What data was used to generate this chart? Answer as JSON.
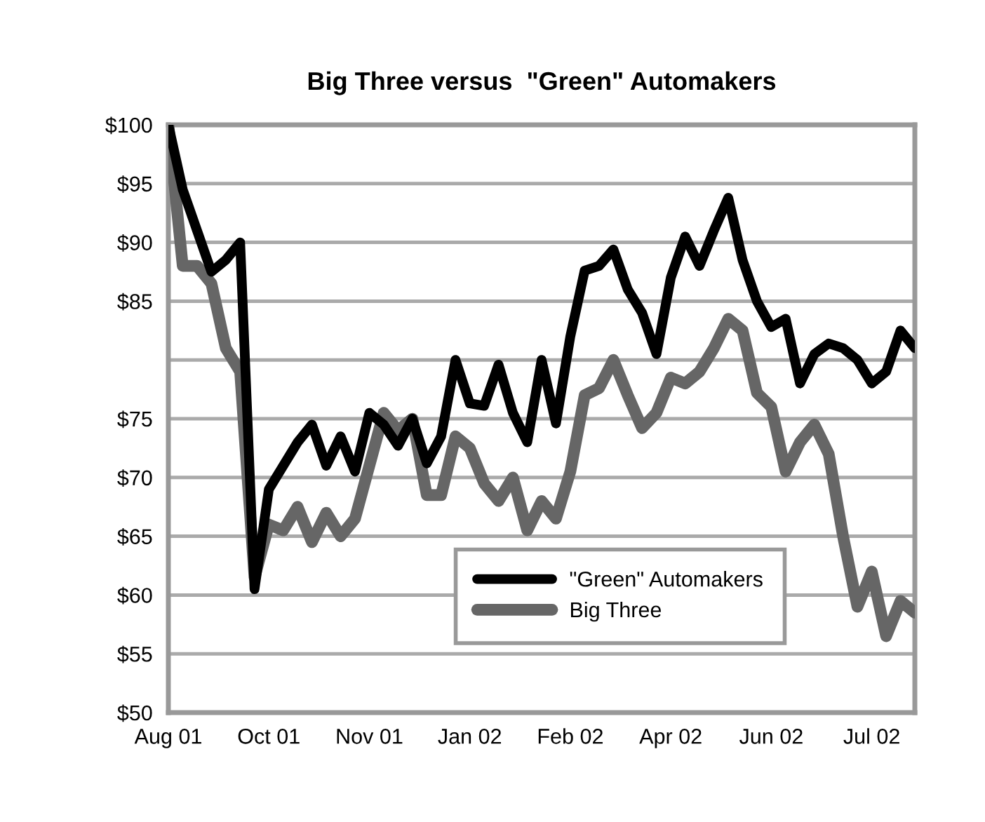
{
  "chart_data": {
    "type": "line",
    "title": "Big Three versus  \"Green\" Automakers",
    "categories": [
      "Aug 01",
      null,
      null,
      null,
      null,
      null,
      null,
      "Oct 01",
      null,
      null,
      null,
      null,
      null,
      null,
      "Nov 01",
      null,
      null,
      null,
      null,
      null,
      null,
      "Jan 02",
      null,
      null,
      null,
      null,
      null,
      null,
      "Feb 02",
      null,
      null,
      null,
      null,
      null,
      null,
      "Apr 02",
      null,
      null,
      null,
      null,
      null,
      null,
      "Jun 02",
      null,
      null,
      null,
      null,
      null,
      null,
      "Jul 02",
      null,
      null,
      null
    ],
    "series": [
      {
        "name": "\"Green\" Automakers",
        "color": "#000000",
        "values": [
          100,
          94.5,
          91,
          87.5,
          88.5,
          90,
          60.5,
          69,
          71,
          73,
          74.5,
          71,
          73.5,
          70.5,
          75.5,
          74.5,
          72.7,
          75,
          71.2,
          73.5,
          80,
          76.3,
          76.1,
          79.6,
          75.5,
          73,
          80,
          74.6,
          82,
          87.6,
          88,
          89.4,
          86,
          84,
          80.5,
          87,
          90.5,
          88,
          91,
          93.8,
          88.5,
          85,
          82.8,
          83.5,
          78,
          80.5,
          81.4,
          81,
          80,
          78,
          79,
          82.5,
          81
        ]
      },
      {
        "name": "Big Three",
        "color": "#666666",
        "values": [
          100,
          88,
          88,
          86.5,
          81,
          79,
          61.5,
          66,
          65.5,
          67.5,
          64.5,
          67,
          65,
          66.5,
          71,
          75.5,
          74,
          75,
          68.5,
          68.5,
          73.5,
          72.5,
          69.5,
          68,
          70,
          65.5,
          68,
          66.5,
          70.5,
          77,
          77.6,
          80,
          77,
          74.2,
          75.5,
          78.5,
          78,
          79,
          81,
          83.5,
          82.5,
          77.2,
          76,
          70.5,
          73,
          74.5,
          72,
          65,
          59,
          62,
          56.5,
          59.5,
          58.5
        ]
      }
    ],
    "ylim": [
      50,
      100
    ],
    "yticks": [
      {
        "value": 100,
        "label": "$100"
      },
      {
        "value": 95,
        "label": "$95"
      },
      {
        "value": 90,
        "label": "$90"
      },
      {
        "value": 85,
        "label": "$85"
      },
      {
        "value": 80,
        "label": null
      },
      {
        "value": 75,
        "label": "$75"
      },
      {
        "value": 70,
        "label": "$70"
      },
      {
        "value": 65,
        "label": "$65"
      },
      {
        "value": 60,
        "label": "$60"
      },
      {
        "value": 55,
        "label": "$55"
      },
      {
        "value": 50,
        "label": "$50"
      }
    ],
    "grid": "y",
    "legend": "bottom right",
    "marker": "none",
    "line_style": "solid"
  }
}
